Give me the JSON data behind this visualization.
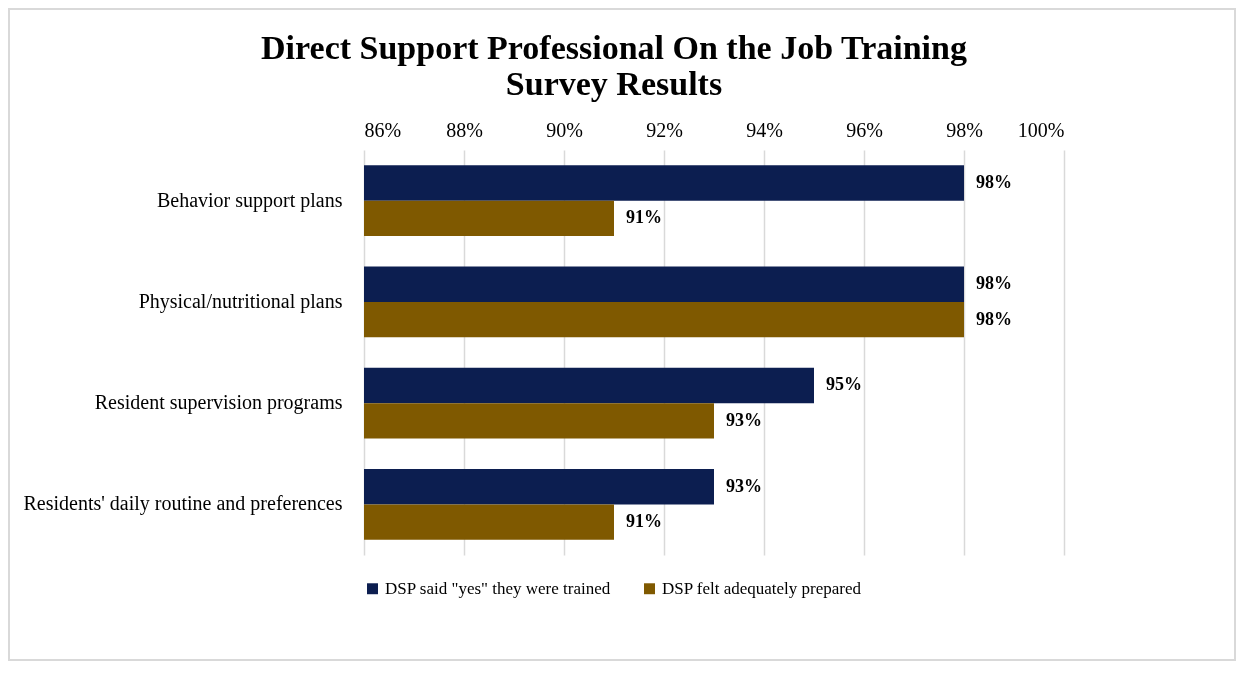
{
  "chart_data": {
    "type": "bar",
    "orientation": "horizontal",
    "title": "Direct Support Professional On the Job Training Survey Results",
    "categories": [
      "Behavior support plans",
      "Physical/nutritional plans",
      "Resident supervision programs",
      "Residents' daily routine and preferences"
    ],
    "series": [
      {
        "name": "DSP said \"yes\" they were trained",
        "color": "#0c1e50",
        "values": [
          98,
          98,
          95,
          93
        ],
        "value_labels": [
          "98%",
          "98%",
          "95%",
          "93%"
        ]
      },
      {
        "name": "DSP felt adequately prepared",
        "color": "#7f5900",
        "values": [
          91,
          98,
          93,
          91
        ],
        "value_labels": [
          "91%",
          "98%",
          "93%",
          "91%"
        ]
      }
    ],
    "xlim": [
      86,
      100
    ],
    "xticks": [
      {
        "value": 86,
        "label": "86%"
      },
      {
        "value": 88,
        "label": "88%"
      },
      {
        "value": 90,
        "label": "90%"
      },
      {
        "value": 92,
        "label": "92%"
      },
      {
        "value": 94,
        "label": "94%"
      },
      {
        "value": 96,
        "label": "96%"
      },
      {
        "value": 98,
        "label": "98%"
      },
      {
        "value": 100,
        "label": "100%"
      }
    ],
    "grid": "x",
    "legend": "bottom"
  }
}
